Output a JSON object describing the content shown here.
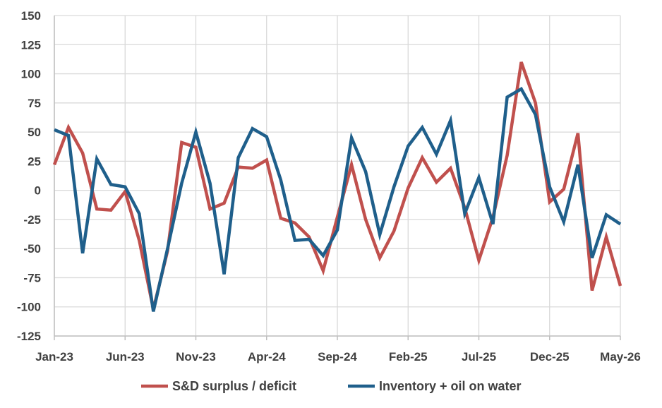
{
  "chart_data": {
    "type": "line",
    "ylim": [
      -125,
      150
    ],
    "yticks": [
      150,
      125,
      100,
      75,
      50,
      25,
      0,
      -25,
      -50,
      -75,
      -100,
      -125
    ],
    "ytick_labels": [
      "150",
      "125",
      "100",
      "75",
      "50",
      "25",
      "0",
      "-25",
      "-50",
      "-75",
      "-100",
      "-125"
    ],
    "x": [
      "Jan-23",
      "Feb-23",
      "Mar-23",
      "Apr-23",
      "May-23",
      "Jun-23",
      "Jul-23",
      "Aug-23",
      "Sep-23",
      "Oct-23",
      "Nov-23",
      "Dec-23",
      "Jan-24",
      "Feb-24",
      "Mar-24",
      "Apr-24",
      "May-24",
      "Jun-24",
      "Jul-24",
      "Aug-24",
      "Sep-24",
      "Oct-24",
      "Nov-24",
      "Dec-24",
      "Jan-25",
      "Feb-25",
      "Mar-25",
      "Apr-25",
      "May-25",
      "Jun-25",
      "Jul-25",
      "Aug-25",
      "Sep-25",
      "Oct-25",
      "Nov-25",
      "Dec-25",
      "Jan-26",
      "Feb-26",
      "Mar-26",
      "Apr-26",
      "May-26"
    ],
    "xtick_labels": [
      "Jan-23",
      "Jun-23",
      "Nov-23",
      "Apr-24",
      "Sep-24",
      "Feb-25",
      "Jul-25",
      "Dec-25",
      "May-26"
    ],
    "grid": true,
    "legend_position": "bottom",
    "series": [
      {
        "name": "S&D surplus / deficit",
        "color": "#c0504d",
        "values": [
          22,
          54,
          32,
          -16,
          -17,
          -1,
          -43,
          -102,
          -52,
          41,
          37,
          -16,
          -11,
          20,
          19,
          26,
          -24,
          -28,
          -40,
          -69,
          -23,
          22,
          -25,
          -58,
          -35,
          2,
          28,
          7,
          19,
          -15,
          -60,
          -23,
          30,
          110,
          75,
          -10,
          1,
          49,
          -86,
          -40,
          -82
        ]
      },
      {
        "name": "Inventory + oil on water",
        "color": "#1f5f8b",
        "values": [
          52,
          47,
          -54,
          27,
          5,
          3,
          -20,
          -104,
          -50,
          6,
          50,
          6,
          -72,
          28,
          53,
          46,
          9,
          -43,
          -42,
          -56,
          -34,
          45,
          16,
          -38,
          3,
          38,
          54,
          31,
          60,
          -20,
          11,
          -29,
          80,
          87,
          65,
          3,
          -27,
          22,
          -58,
          -21,
          -29
        ]
      }
    ]
  }
}
